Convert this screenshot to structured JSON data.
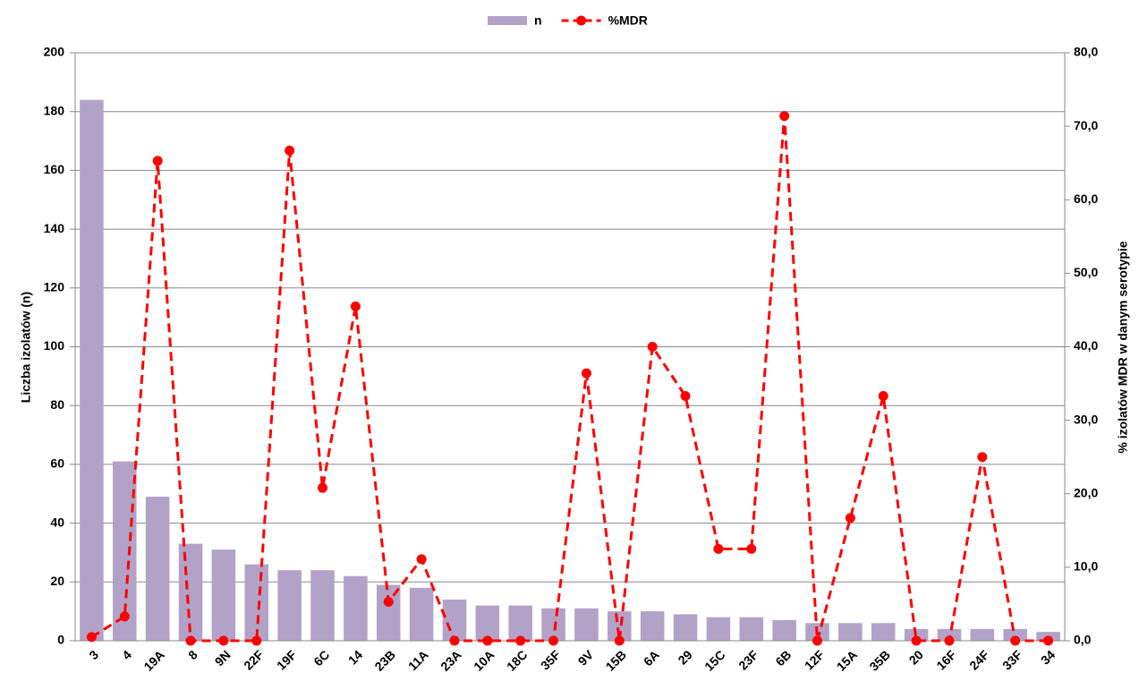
{
  "chart_data": {
    "type": "bar-line",
    "categories": [
      "3",
      "4",
      "19A",
      "8",
      "9N",
      "22F",
      "19F",
      "6C",
      "14",
      "23B",
      "11A",
      "23A",
      "10A",
      "18C",
      "35F",
      "9V",
      "15B",
      "6A",
      "29",
      "15C",
      "23F",
      "6B",
      "12F",
      "15A",
      "35B",
      "20",
      "16F",
      "24F",
      "33F",
      "34"
    ],
    "series": [
      {
        "name": "n",
        "type": "bar",
        "color": "#b3a2c7",
        "values": [
          184,
          61,
          49,
          33,
          31,
          26,
          24,
          24,
          22,
          19,
          18,
          14,
          12,
          12,
          11,
          11,
          10,
          10,
          9,
          8,
          8,
          7,
          6,
          6,
          6,
          4,
          4,
          4,
          4,
          3
        ]
      },
      {
        "name": "%MDR",
        "type": "line",
        "axis": "y2",
        "color": "#ff0000",
        "values": [
          0.5,
          3.3,
          65.3,
          0,
          0,
          0,
          66.7,
          20.8,
          45.5,
          5.3,
          11.1,
          0,
          0,
          0,
          0,
          36.4,
          0,
          40,
          33.3,
          12.5,
          12.5,
          71.4,
          0,
          16.7,
          33.3,
          0,
          0,
          25,
          0,
          0
        ]
      }
    ],
    "y_label": "Liczba izolatów (n)",
    "y2_label": "% izolatów MDR w danym serotypie",
    "ylim": [
      0,
      200
    ],
    "yticks": [
      0,
      20,
      40,
      60,
      80,
      100,
      120,
      140,
      160,
      180,
      200
    ],
    "y2lim": [
      0,
      80
    ],
    "y2ticks": [
      {
        "value": 0,
        "label": "0,0"
      },
      {
        "value": 10,
        "label": "10,0"
      },
      {
        "value": 20,
        "label": "20,0"
      },
      {
        "value": 30,
        "label": "30,0"
      },
      {
        "value": 40,
        "label": "40,0"
      },
      {
        "value": 50,
        "label": "50,0"
      },
      {
        "value": 60,
        "label": "60,0"
      },
      {
        "value": 70,
        "label": "70,0"
      },
      {
        "value": 80,
        "label": "80,0"
      }
    ],
    "grid": true,
    "legend": "top"
  }
}
